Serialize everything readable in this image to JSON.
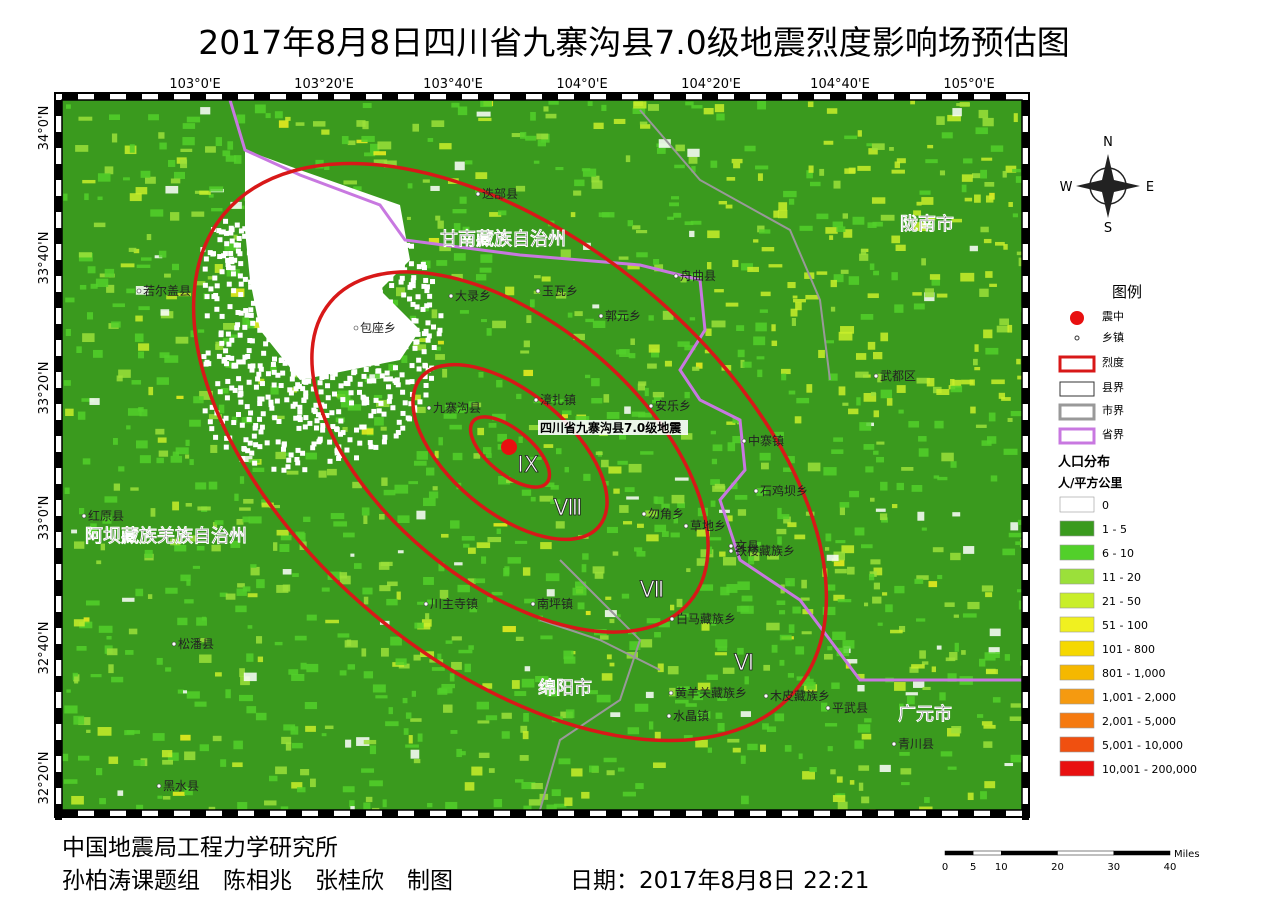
{
  "title": "2017年8月8日四川省九寨沟县7.0级地震烈度影响场预估图",
  "map": {
    "longitude_labels": [
      "103°0'E",
      "103°20'E",
      "103°40'E",
      "104°0'E",
      "104°20'E",
      "104°40'E",
      "105°0'E"
    ],
    "latitude_labels": [
      "34°0'N",
      "33°40'N",
      "33°20'N",
      "33°0'N",
      "32°40'N",
      "32°20'N"
    ],
    "epicenter_label": "四川省九寨沟县7.0级地震",
    "intensity_labels": [
      "IX",
      "Ⅷ",
      "Ⅶ",
      "Ⅵ"
    ],
    "region_labels": [
      "甘南藏族自治州",
      "陇南市",
      "阿坝藏族羌族自治州",
      "绵阳市",
      "广元市"
    ],
    "place_labels": [
      "九寨沟县",
      "漳扎镇",
      "若尔盖县",
      "包座乡",
      "大录乡",
      "玉瓦乡",
      "郭元乡",
      "安乐乡",
      "中寨镇",
      "石鸡坝乡",
      "铁楼藏族乡",
      "木皮藏族乡",
      "黄羊关藏族乡",
      "水晶镇",
      "平武县",
      "松潘县",
      "黑水县",
      "红原县",
      "文县",
      "武都区",
      "青川县",
      "舟曲县",
      "迭部县",
      "白马藏族乡",
      "川主寺镇",
      "南坪镇",
      "勿角乡",
      "草地乡"
    ],
    "compass": [
      "N",
      "S",
      "E",
      "W"
    ]
  },
  "legend": {
    "title": "图例",
    "items": [
      "震中",
      "乡镇",
      "烈度",
      "县界",
      "市界",
      "省界"
    ]
  },
  "population_legend": {
    "title": "人口分布",
    "unit": "人/平方公里",
    "classes": [
      {
        "label": "0",
        "color": "#ffffff"
      },
      {
        "label": "1 - 5",
        "color": "#3a9a1e"
      },
      {
        "label": "6 - 10",
        "color": "#52d02a"
      },
      {
        "label": "11 - 20",
        "color": "#9be03a"
      },
      {
        "label": "21 - 50",
        "color": "#c9ee2a"
      },
      {
        "label": "51 - 100",
        "color": "#f0f020"
      },
      {
        "label": "101 - 800",
        "color": "#f5d800"
      },
      {
        "label": "801 - 1,000",
        "color": "#f5b800"
      },
      {
        "label": "1,001 - 2,000",
        "color": "#f59a10"
      },
      {
        "label": "2,001 - 5,000",
        "color": "#f57a10"
      },
      {
        "label": "5,001 - 10,000",
        "color": "#f05010"
      },
      {
        "label": "10,001 - 200,000",
        "color": "#e81010"
      }
    ]
  },
  "scale_bar": {
    "ticks": [
      0,
      5,
      10,
      20,
      30,
      40
    ],
    "unit": "Miles"
  },
  "footer": {
    "institute": "中国地震局工程力学研究所",
    "authors": "孙柏涛课题组　陈相兆　张桂欣　制图",
    "date": "日期：2017年8月8日 22:21"
  }
}
